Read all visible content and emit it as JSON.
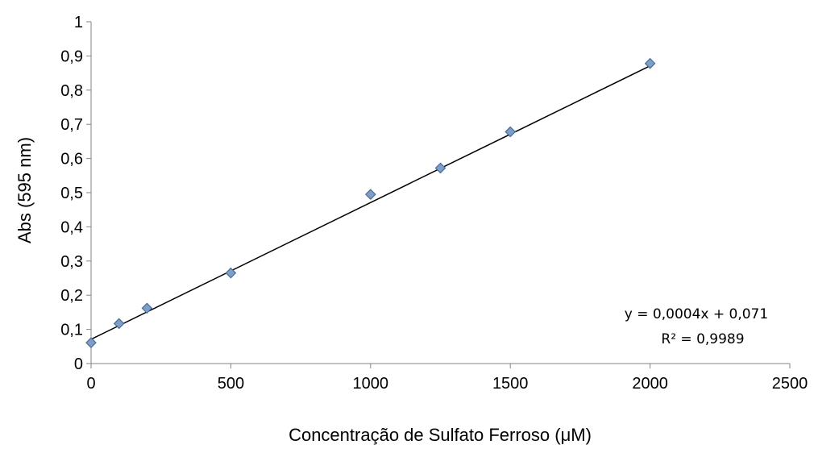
{
  "chart_data": {
    "type": "scatter",
    "title": "",
    "xlabel": "Concentração de Sulfato Ferroso (μM)",
    "ylabel": "Abs (595 nm)",
    "xlim": [
      0,
      2500
    ],
    "ylim": [
      0,
      1
    ],
    "x_ticks": [
      "0",
      "500",
      "1000",
      "1500",
      "2000",
      "2500"
    ],
    "y_ticks": [
      "0",
      "0,1",
      "0,2",
      "0,3",
      "0,4",
      "0,5",
      "0,6",
      "0,7",
      "0,8",
      "0,9",
      "1"
    ],
    "grid": false,
    "series": [
      {
        "x": [
          0,
          100,
          200,
          500,
          1000,
          1250,
          1500,
          2000
        ],
        "y": [
          0.061,
          0.117,
          0.162,
          0.265,
          0.495,
          0.572,
          0.678,
          0.878
        ],
        "marker": "diamond",
        "color": "#7f9ec7",
        "edge_color": "#4a6c94"
      }
    ],
    "trendline": {
      "type": "linear",
      "slope": 0.0004,
      "intercept": 0.071,
      "equation": "y = 0,0004x + 0,071",
      "r_squared": "R² = 0,9989",
      "color": "#000000"
    }
  }
}
